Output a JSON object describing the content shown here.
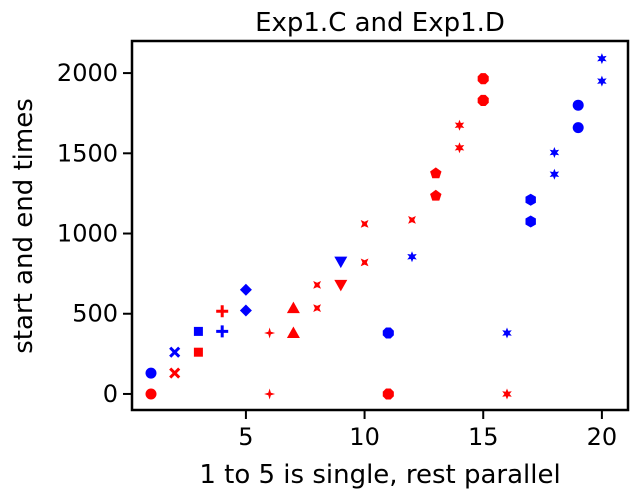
{
  "chart_data": {
    "type": "scatter",
    "title": "Exp1.C and Exp1.D",
    "xlabel": "1 to 5 is single, rest parallel",
    "ylabel": "start and end times",
    "xlim": [
      0.2,
      21.1
    ],
    "ylim": [
      -100,
      2200
    ],
    "xticks": [
      5,
      10,
      15,
      20
    ],
    "yticks": [
      0,
      500,
      1000,
      1500,
      2000
    ],
    "grid": false,
    "legend": "none",
    "series": [
      {
        "color": "#ff0000",
        "points": [
          {
            "x": 1,
            "y": 0,
            "marker": "circle"
          },
          {
            "x": 2,
            "y": 130,
            "marker": "x"
          },
          {
            "x": 3,
            "y": 260,
            "marker": "square"
          },
          {
            "x": 4,
            "y": 515,
            "marker": "plus"
          },
          {
            "x": 6,
            "y": 0,
            "marker": "star4"
          },
          {
            "x": 6,
            "y": 380,
            "marker": "star4"
          },
          {
            "x": 7,
            "y": 380,
            "marker": "triangle-up"
          },
          {
            "x": 7,
            "y": 535,
            "marker": "triangle-up"
          },
          {
            "x": 8,
            "y": 535,
            "marker": "star-x"
          },
          {
            "x": 8,
            "y": 680,
            "marker": "star-x"
          },
          {
            "x": 9,
            "y": 680,
            "marker": "triangle-down"
          },
          {
            "x": 10,
            "y": 820,
            "marker": "star-x"
          },
          {
            "x": 10,
            "y": 1060,
            "marker": "star-x"
          },
          {
            "x": 11,
            "y": 0,
            "marker": "octagon"
          },
          {
            "x": 12,
            "y": 1085,
            "marker": "star-x"
          },
          {
            "x": 13,
            "y": 1235,
            "marker": "pentagon"
          },
          {
            "x": 13,
            "y": 1375,
            "marker": "pentagon"
          },
          {
            "x": 14,
            "y": 1535,
            "marker": "star"
          },
          {
            "x": 14,
            "y": 1675,
            "marker": "star"
          },
          {
            "x": 15,
            "y": 1830,
            "marker": "octagon"
          },
          {
            "x": 15,
            "y": 1965,
            "marker": "octagon"
          },
          {
            "x": 16,
            "y": 0,
            "marker": "star"
          }
        ]
      },
      {
        "color": "#0000ff",
        "points": [
          {
            "x": 1,
            "y": 130,
            "marker": "circle"
          },
          {
            "x": 2,
            "y": 260,
            "marker": "x"
          },
          {
            "x": 3,
            "y": 390,
            "marker": "square"
          },
          {
            "x": 4,
            "y": 390,
            "marker": "plus"
          },
          {
            "x": 5,
            "y": 520,
            "marker": "diamond"
          },
          {
            "x": 5,
            "y": 650,
            "marker": "diamond"
          },
          {
            "x": 9,
            "y": 825,
            "marker": "triangle-down"
          },
          {
            "x": 11,
            "y": 380,
            "marker": "octagon"
          },
          {
            "x": 12,
            "y": 855,
            "marker": "star"
          },
          {
            "x": 16,
            "y": 380,
            "marker": "star"
          },
          {
            "x": 17,
            "y": 1075,
            "marker": "hexagon"
          },
          {
            "x": 17,
            "y": 1210,
            "marker": "hexagon"
          },
          {
            "x": 18,
            "y": 1370,
            "marker": "star"
          },
          {
            "x": 18,
            "y": 1505,
            "marker": "star"
          },
          {
            "x": 19,
            "y": 1660,
            "marker": "circle"
          },
          {
            "x": 19,
            "y": 1800,
            "marker": "circle"
          },
          {
            "x": 20,
            "y": 1950,
            "marker": "star"
          },
          {
            "x": 20,
            "y": 2090,
            "marker": "star"
          }
        ]
      }
    ]
  }
}
